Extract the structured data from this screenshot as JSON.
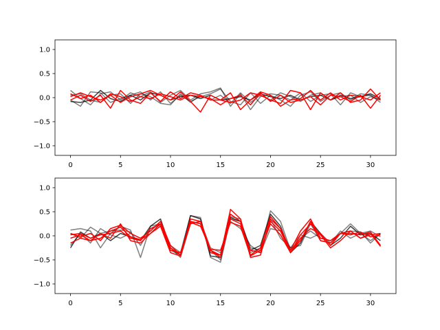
{
  "chart_data": [
    {
      "type": "line",
      "title": "",
      "xlabel": "",
      "ylabel": "",
      "xlim": [
        -1.55,
        32.55
      ],
      "ylim": [
        -1.2,
        1.2
      ],
      "x": [
        0,
        1,
        2,
        3,
        4,
        5,
        6,
        7,
        8,
        9,
        10,
        11,
        12,
        13,
        14,
        15,
        16,
        17,
        18,
        19,
        20,
        21,
        22,
        23,
        24,
        25,
        26,
        27,
        28,
        29,
        30,
        31
      ],
      "xticks": [
        0,
        5,
        10,
        15,
        20,
        25,
        30
      ],
      "yticks": [
        -1.0,
        -0.5,
        0.0,
        0.5,
        1.0
      ],
      "xtick_labels": [
        "0",
        "5",
        "10",
        "15",
        "20",
        "25",
        "30"
      ],
      "ytick_labels": [
        "−1.0",
        "−0.5",
        "0.0",
        "0.5",
        "1.0"
      ],
      "grid": false,
      "series": [
        {
          "color": "#000000",
          "alpha": 0.5,
          "values": [
            0.15,
            -0.02,
            -0.15,
            0.08,
            0.12,
            -0.05,
            0.1,
            0.02,
            0.12,
            -0.1,
            0.05,
            0.15,
            -0.05,
            0.08,
            0.12,
            0.2,
            -0.18,
            0.08,
            -0.25,
            0.02,
            0.08,
            0.05,
            -0.05,
            0.1,
            -0.08,
            0.05,
            0.08,
            -0.15,
            0.1,
            0.02,
            0.05,
            -0.05
          ]
        },
        {
          "color": "#000000",
          "alpha": 0.5,
          "values": [
            -0.05,
            -0.18,
            0.12,
            0.1,
            -0.1,
            -0.02,
            0.05,
            0.12,
            -0.05,
            0.12,
            -0.12,
            0.05,
            -0.08,
            0.02,
            0.08,
            0.18,
            -0.08,
            -0.15,
            0.1,
            -0.12,
            0.05,
            -0.05,
            -0.18,
            0.05,
            0.12,
            -0.08,
            0.05,
            0.1,
            -0.05,
            0.08,
            0.05,
            -0.1
          ]
        },
        {
          "color": "#000000",
          "alpha": 0.5,
          "values": [
            0.05,
            0.08,
            -0.05,
            -0.1,
            0.05,
            0.08,
            -0.12,
            0.08,
            0.02,
            -0.12,
            -0.15,
            0.08,
            -0.1,
            0.05,
            -0.05,
            0.05,
            -0.12,
            0.1,
            -0.1,
            0.05,
            -0.05,
            0.1,
            0.02,
            -0.08,
            0.05,
            0.1,
            -0.05,
            0.02,
            0.05,
            -0.1,
            0.02,
            -0.05
          ]
        },
        {
          "color": "#000000",
          "alpha": 0.75,
          "values": [
            -0.08,
            -0.1,
            -0.05,
            0.15,
            -0.02,
            -0.08,
            0.05,
            -0.05,
            0.1,
            0.05,
            -0.05,
            0.02,
            0.05,
            -0.02,
            0.05,
            -0.05,
            -0.02,
            0.02,
            -0.05,
            0.08,
            0.02,
            -0.02,
            0.05,
            -0.05,
            0.02,
            0.05,
            -0.05,
            0.05,
            -0.02,
            0.02,
            0.08,
            -0.02
          ]
        },
        {
          "color": "#ff0000",
          "alpha": 1.0,
          "values": [
            0.02,
            0.1,
            0.02,
            -0.05,
            0.05,
            -0.1,
            0.02,
            0.08,
            0.15,
            0.05,
            -0.05,
            0.12,
            -0.08,
            -0.3,
            0.05,
            -0.05,
            -0.1,
            -0.05,
            0.1,
            0.05,
            -0.05,
            -0.12,
            0.15,
            0.1,
            -0.25,
            0.1,
            -0.05,
            0.1,
            -0.1,
            -0.05,
            0.18,
            -0.05
          ]
        },
        {
          "color": "#ff0000",
          "alpha": 1.0,
          "values": [
            -0.05,
            0.05,
            -0.08,
            0.05,
            -0.22,
            0.15,
            -0.05,
            -0.12,
            0.1,
            -0.08,
            0.12,
            -0.02,
            0.1,
            0.05,
            -0.05,
            -0.05,
            0.1,
            -0.25,
            -0.05,
            0.12,
            0.05,
            -0.18,
            -0.05,
            -0.02,
            0.15,
            -0.05,
            0.1,
            -0.05,
            0.05,
            0.02,
            -0.05,
            0.1
          ]
        },
        {
          "color": "#ff0000",
          "alpha": 1.0,
          "values": [
            0.08,
            -0.02,
            0.05,
            -0.1,
            0.08,
            0.02,
            -0.08,
            0.02,
            -0.02,
            0.08,
            0.02,
            -0.05,
            0.05,
            0.02,
            -0.02,
            -0.15,
            -0.02,
            0.05,
            -0.15,
            0.1,
            -0.08,
            0.05,
            -0.1,
            -0.05,
            0.02,
            -0.15,
            0.05,
            0.02,
            -0.08,
            0.05,
            -0.22,
            0.05
          ]
        }
      ]
    },
    {
      "type": "line",
      "title": "",
      "xlabel": "",
      "ylabel": "",
      "xlim": [
        -1.55,
        32.55
      ],
      "ylim": [
        -1.2,
        1.2
      ],
      "x": [
        0,
        1,
        2,
        3,
        4,
        5,
        6,
        7,
        8,
        9,
        10,
        11,
        12,
        13,
        14,
        15,
        16,
        17,
        18,
        19,
        20,
        21,
        22,
        23,
        24,
        25,
        26,
        27,
        28,
        29,
        30,
        31
      ],
      "xticks": [
        0,
        5,
        10,
        15,
        20,
        25,
        30
      ],
      "yticks": [
        -1.0,
        -0.5,
        0.0,
        0.5,
        1.0
      ],
      "xtick_labels": [
        "0",
        "5",
        "10",
        "15",
        "20",
        "25",
        "30"
      ],
      "ytick_labels": [
        "−1.0",
        "−0.5",
        "0.0",
        "0.5",
        "1.0"
      ],
      "grid": false,
      "series": [
        {
          "color": "#000000",
          "alpha": 0.5,
          "values": [
            0.12,
            0.15,
            0.1,
            -0.25,
            0.05,
            0.2,
            0.12,
            -0.45,
            0.2,
            0.25,
            -0.2,
            -0.35,
            0.42,
            0.38,
            -0.45,
            -0.55,
            0.35,
            0.3,
            -0.25,
            -0.3,
            0.52,
            0.3,
            -0.3,
            -0.05,
            0.1,
            -0.05,
            -0.1,
            0.05,
            0.25,
            0.05,
            0.1,
            -0.02
          ]
        },
        {
          "color": "#000000",
          "alpha": 0.5,
          "values": [
            0.05,
            -0.05,
            0.18,
            0.05,
            0.1,
            0.12,
            0.08,
            -0.2,
            0.15,
            0.22,
            -0.3,
            -0.4,
            0.3,
            0.25,
            -0.3,
            -0.5,
            0.4,
            0.35,
            -0.35,
            -0.25,
            0.35,
            -0.05,
            -0.25,
            -0.2,
            0.25,
            -0.1,
            -0.15,
            0.05,
            0.1,
            0.08,
            -0.15,
            0.05
          ]
        },
        {
          "color": "#000000",
          "alpha": 0.5,
          "values": [
            -0.2,
            0.05,
            -0.15,
            0.15,
            0.02,
            -0.05,
            0.05,
            -0.05,
            0.1,
            0.3,
            -0.25,
            -0.45,
            0.25,
            0.3,
            -0.25,
            -0.35,
            0.3,
            0.15,
            -0.2,
            -0.35,
            0.15,
            0.1,
            -0.25,
            0.02,
            -0.05,
            0.05,
            -0.15,
            0.1,
            -0.05,
            0.05,
            -0.1,
            0.05
          ]
        },
        {
          "color": "#000000",
          "alpha": 0.75,
          "values": [
            -0.25,
            0.08,
            -0.05,
            0.05,
            -0.1,
            0.05,
            -0.02,
            -0.1,
            0.2,
            0.35,
            -0.25,
            -0.4,
            0.42,
            0.35,
            -0.42,
            -0.45,
            0.38,
            0.3,
            -0.3,
            -0.2,
            0.45,
            0.2,
            -0.35,
            -0.15,
            0.3,
            0.05,
            -0.2,
            -0.05,
            0.2,
            0.02,
            0.05,
            -0.1
          ]
        },
        {
          "color": "#ff0000",
          "alpha": 1.0,
          "values": [
            0.05,
            -0.02,
            0.05,
            -0.1,
            0.15,
            0.22,
            0.05,
            -0.05,
            0.1,
            0.3,
            -0.2,
            -0.4,
            0.35,
            0.3,
            -0.3,
            -0.4,
            0.55,
            0.35,
            -0.45,
            -0.4,
            0.35,
            0.15,
            -0.3,
            0.1,
            0.35,
            -0.05,
            -0.1,
            0.05,
            0.05,
            0.02,
            0.08,
            -0.2
          ]
        },
        {
          "color": "#ff0000",
          "alpha": 1.0,
          "values": [
            -0.15,
            -0.05,
            -0.1,
            0.05,
            -0.05,
            0.25,
            -0.1,
            -0.15,
            0.05,
            0.25,
            -0.25,
            -0.4,
            0.3,
            0.25,
            -0.35,
            -0.4,
            0.45,
            0.3,
            -0.4,
            -0.25,
            0.4,
            0.15,
            -0.35,
            0.02,
            0.25,
            0.02,
            -0.25,
            -0.1,
            0.1,
            -0.05,
            0.05,
            -0.22
          ]
        },
        {
          "color": "#ff0000",
          "alpha": 1.0,
          "values": [
            0.02,
            0.05,
            -0.05,
            0.02,
            0.05,
            0.1,
            -0.05,
            -0.1,
            0.15,
            0.25,
            -0.3,
            -0.35,
            0.25,
            0.3,
            -0.3,
            -0.45,
            0.35,
            0.25,
            -0.3,
            -0.35,
            0.3,
            0.1,
            -0.35,
            -0.1,
            0.3,
            -0.1,
            -0.15,
            0.05,
            0.1,
            -0.05,
            0.02,
            0.05
          ]
        },
        {
          "color": "#ff0000",
          "alpha": 1.0,
          "values": [
            -0.05,
            0.02,
            -0.1,
            -0.05,
            0.1,
            0.18,
            -0.02,
            -0.08,
            0.05,
            0.2,
            -0.35,
            -0.42,
            0.28,
            0.2,
            -0.28,
            -0.3,
            0.28,
            0.2,
            -0.42,
            -0.3,
            0.25,
            0.02,
            -0.35,
            -0.05,
            0.15,
            0.05,
            -0.2,
            0.05,
            0.02,
            0.08,
            -0.02,
            0.02
          ]
        }
      ]
    }
  ]
}
